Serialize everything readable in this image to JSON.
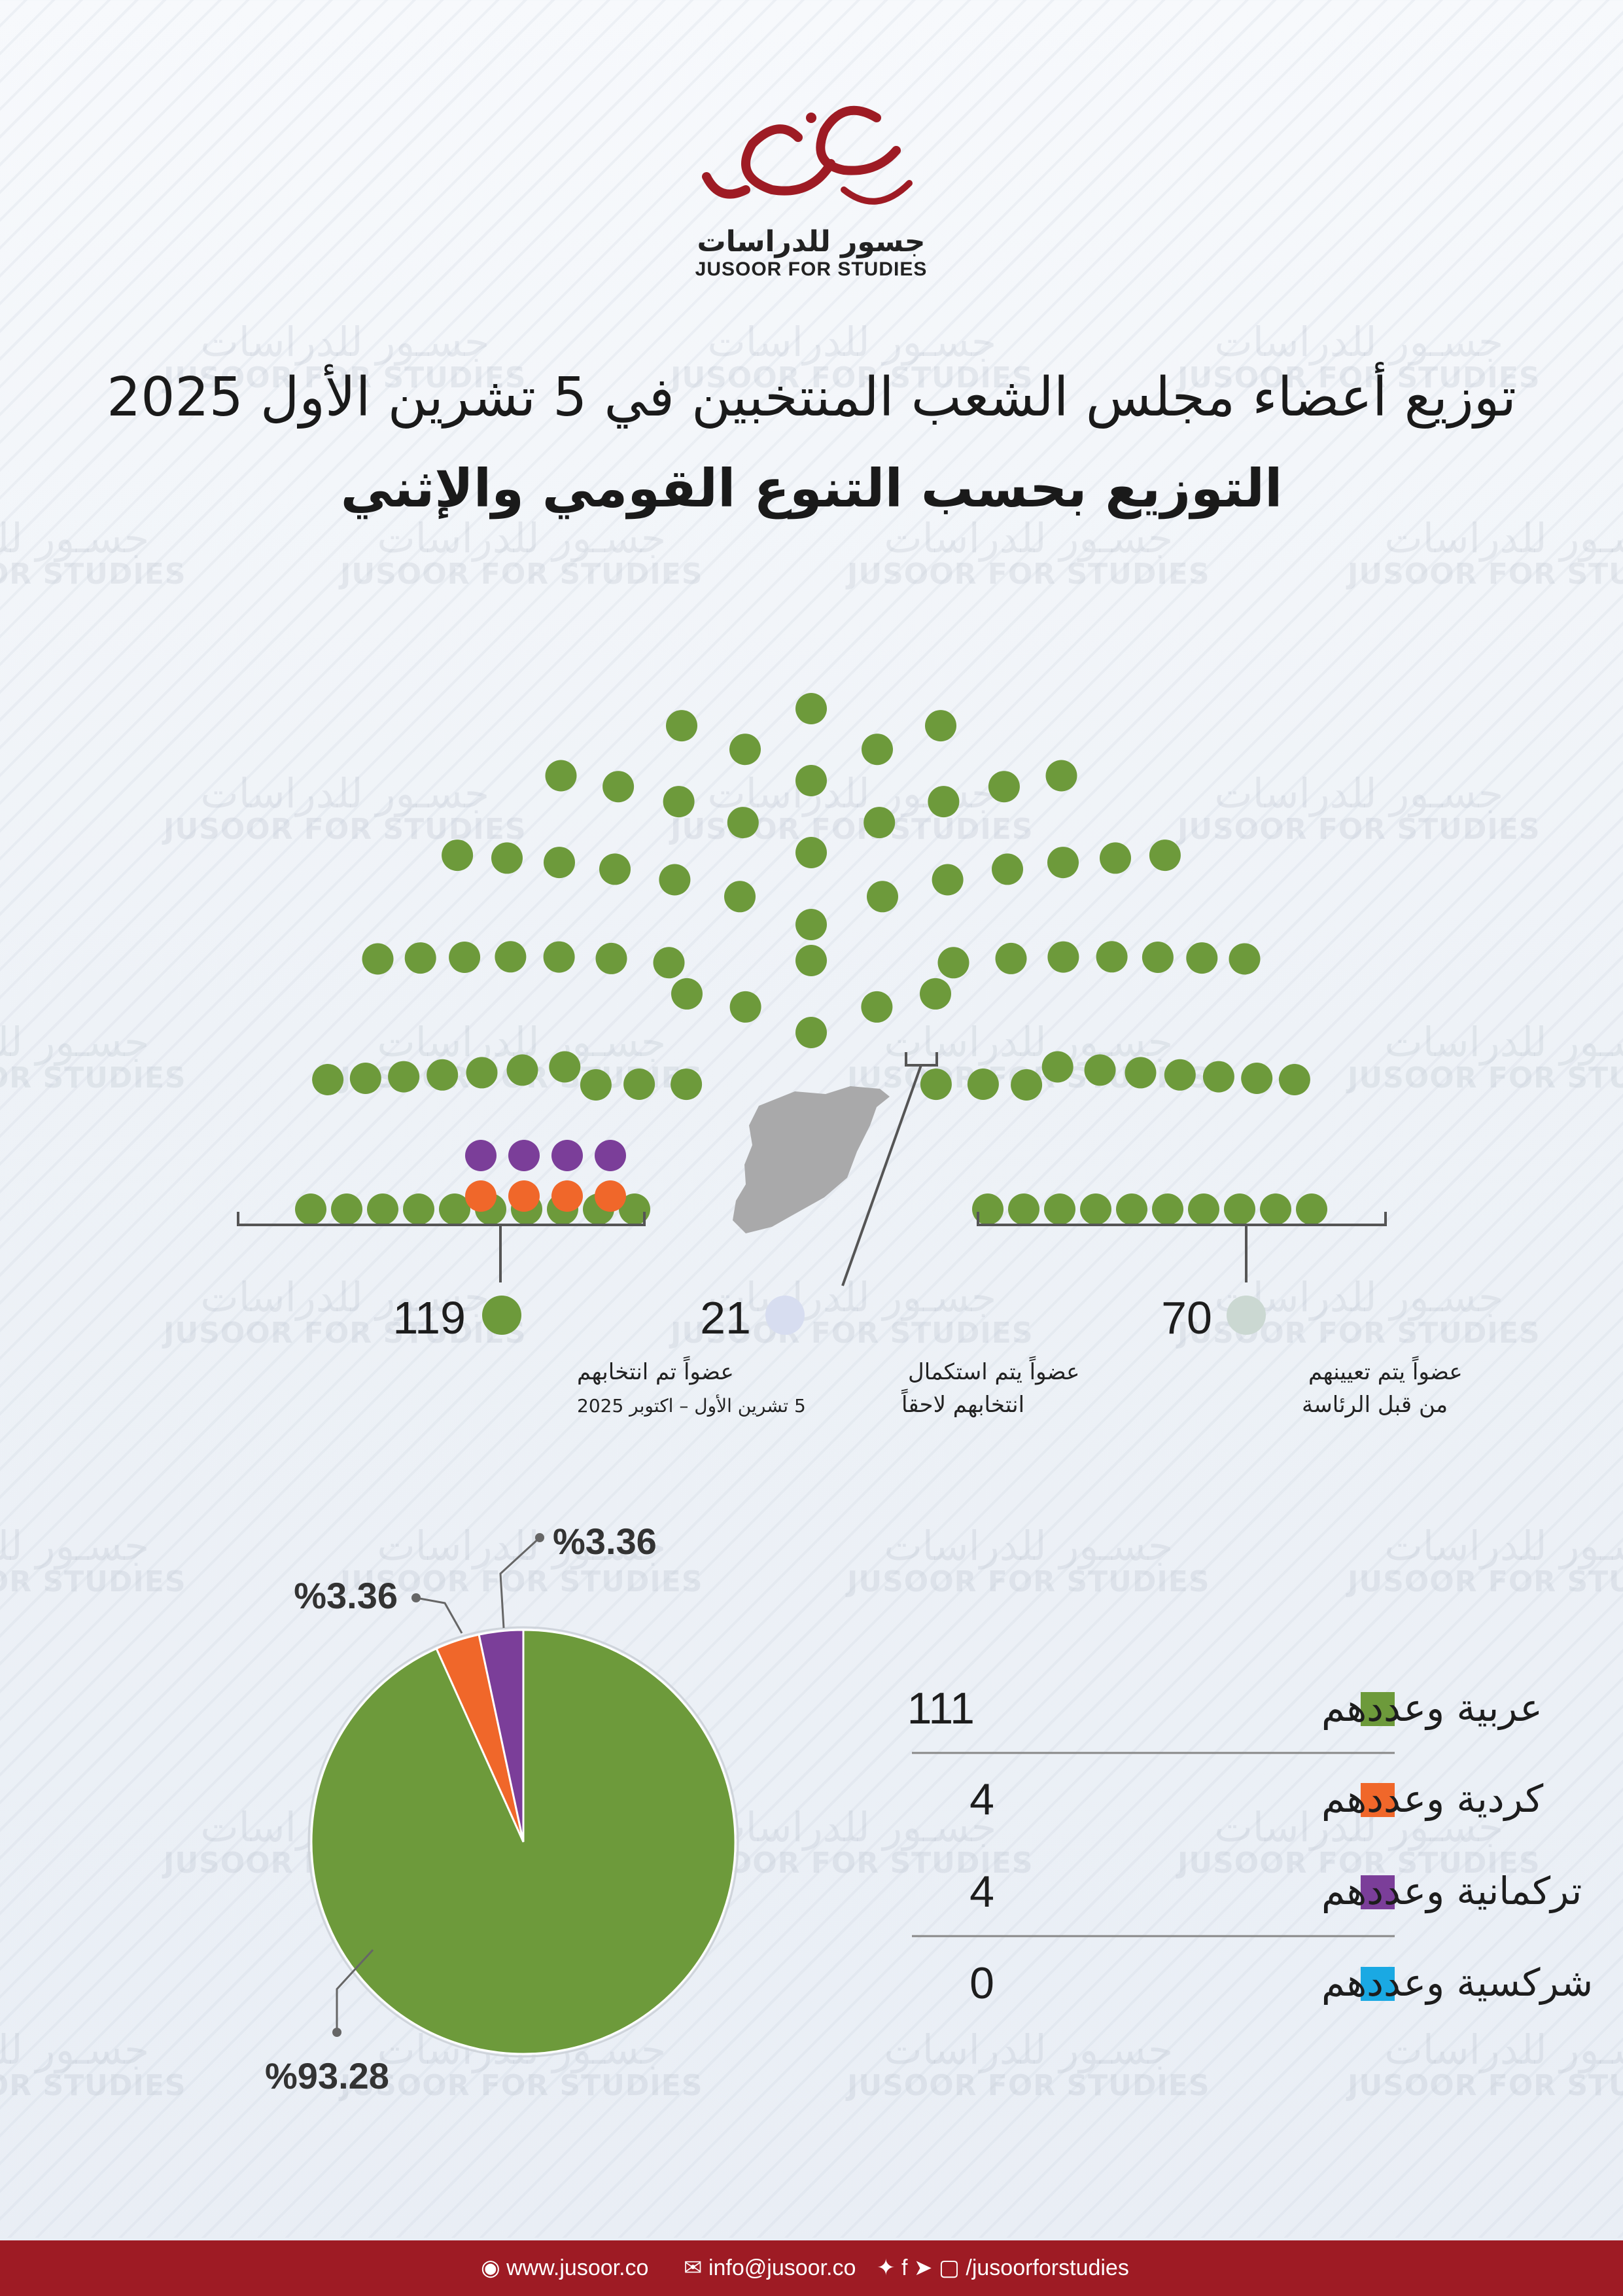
{
  "logo": {
    "arabic_name": "جسور للدراسات",
    "english_name": "JUSOOR FOR STUDIES",
    "calligraphy": "جسور"
  },
  "watermark": {
    "arabic": "جسـور للدراسات",
    "english": "JUSOOR FOR STUDIES"
  },
  "title": "توزيع أعضاء مجلس الشعب المنتخبين في 5 تشرين الأول 2025",
  "subtitle": "التوزيع بحسب التنوع القومي والإثني",
  "colors": {
    "green": "#6d9a3b",
    "orange": "#f0672a",
    "purple": "#7b3e99",
    "lightblue": "#d7ddf0",
    "grey": "#cbd8d2",
    "cyan": "#1aa9e3",
    "footer": "#9e1b24"
  },
  "chart_data": [
    {
      "type": "parliament",
      "title": "توزيع أعضاء مجلس الشعب",
      "groups": [
        {
          "count": "119",
          "value": 119,
          "label_line1": "عضواً تم انتخابهم",
          "label_line2": "5 تشرين الأول – اكتوبر 2025",
          "color": "#6d9a3b"
        },
        {
          "count": "21",
          "value": 21,
          "label_line1": "عضواً يتم استكمال",
          "label_line2": "انتخابهم لاحقاً",
          "color": "#d7ddf0"
        },
        {
          "count": "70",
          "value": 70,
          "label_line1": "عضواً يتم تعيينهم",
          "label_line2": "من قبل الرئاسة",
          "color": "#cbd8d2"
        }
      ],
      "elected_breakdown": {
        "orange": 4,
        "purple": 4
      }
    },
    {
      "type": "pie",
      "slices": [
        {
          "label": "عربية وعددهم",
          "value": 111,
          "pct": "%93.28",
          "color": "#6d9a3b"
        },
        {
          "label": "كردية وعددهم",
          "value": 4,
          "pct": "%3.36",
          "color": "#f0672a"
        },
        {
          "label": "تركمانية وعددهم",
          "value": 4,
          "pct": "%3.36",
          "color": "#7b3e99"
        },
        {
          "label": "شركسية وعددهم",
          "value": 0,
          "pct": "",
          "color": "#1aa9e3"
        }
      ]
    }
  ],
  "footer": {
    "website": "www.jusoor.co",
    "email": "info@jusoor.co",
    "social": "/jusoorforstudies",
    "social_icons": [
      "twitter-icon",
      "facebook-icon",
      "telegram-icon",
      "instagram-icon"
    ]
  }
}
